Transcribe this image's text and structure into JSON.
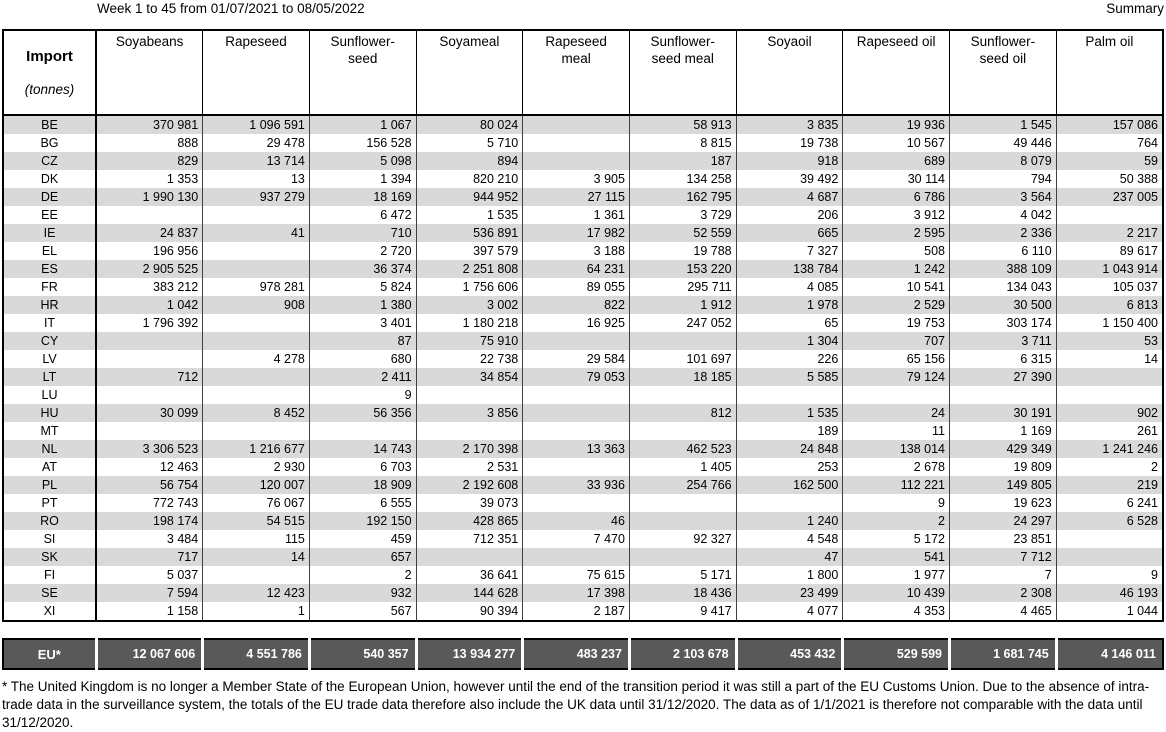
{
  "header": {
    "period": "Week 1 to 45 from 01/07/2021 to 08/05/2022",
    "summary_label": "Summary"
  },
  "table": {
    "corner": {
      "title": "Import",
      "unit": "(tonnes)"
    },
    "columns": [
      "Soyabeans",
      "Rapeseed",
      "Sunflower-\nseed",
      "Soyameal",
      "Rapeseed\nmeal",
      "Sunflower-\nseed meal",
      "Soyaoil",
      "Rapeseed oil",
      "Sunflower-\nseed oil",
      "Palm oil"
    ],
    "rows": [
      {
        "code": "BE",
        "values": [
          "370 981",
          "1 096 591",
          "1 067",
          "80 024",
          "",
          "58 913",
          "3 835",
          "19 936",
          "1 545",
          "157 086"
        ]
      },
      {
        "code": "BG",
        "values": [
          "888",
          "29 478",
          "156 528",
          "5 710",
          "",
          "8 815",
          "19 738",
          "10 567",
          "49 446",
          "764"
        ]
      },
      {
        "code": "CZ",
        "values": [
          "829",
          "13 714",
          "5 098",
          "894",
          "",
          "187",
          "918",
          "689",
          "8 079",
          "59"
        ]
      },
      {
        "code": "DK",
        "values": [
          "1 353",
          "13",
          "1 394",
          "820 210",
          "3 905",
          "134 258",
          "39 492",
          "30 114",
          "794",
          "50 388"
        ]
      },
      {
        "code": "DE",
        "values": [
          "1 990 130",
          "937 279",
          "18 169",
          "944 952",
          "27 115",
          "162 795",
          "4 687",
          "6 786",
          "3 564",
          "237 005"
        ]
      },
      {
        "code": "EE",
        "values": [
          "",
          "",
          "6 472",
          "1 535",
          "1 361",
          "3 729",
          "206",
          "3 912",
          "4 042",
          ""
        ]
      },
      {
        "code": "IE",
        "values": [
          "24 837",
          "41",
          "710",
          "536 891",
          "17 982",
          "52 559",
          "665",
          "2 595",
          "2 336",
          "2 217"
        ]
      },
      {
        "code": "EL",
        "values": [
          "196 956",
          "",
          "2 720",
          "397 579",
          "3 188",
          "19 788",
          "7 327",
          "508",
          "6 110",
          "89 617"
        ]
      },
      {
        "code": "ES",
        "values": [
          "2 905 525",
          "",
          "36 374",
          "2 251 808",
          "64 231",
          "153 220",
          "138 784",
          "1 242",
          "388 109",
          "1 043 914"
        ]
      },
      {
        "code": "FR",
        "values": [
          "383 212",
          "978 281",
          "5 824",
          "1 756 606",
          "89 055",
          "295 711",
          "4 085",
          "10 541",
          "134 043",
          "105 037"
        ]
      },
      {
        "code": "HR",
        "values": [
          "1 042",
          "908",
          "1 380",
          "3 002",
          "822",
          "1 912",
          "1 978",
          "2 529",
          "30 500",
          "6 813"
        ]
      },
      {
        "code": "IT",
        "values": [
          "1 796 392",
          "",
          "3 401",
          "1 180 218",
          "16 925",
          "247 052",
          "65",
          "19 753",
          "303 174",
          "1 150 400"
        ]
      },
      {
        "code": "CY",
        "values": [
          "",
          "",
          "87",
          "75 910",
          "",
          "",
          "1 304",
          "707",
          "3 711",
          "53"
        ]
      },
      {
        "code": "LV",
        "values": [
          "",
          "4 278",
          "680",
          "22 738",
          "29 584",
          "101 697",
          "226",
          "65 156",
          "6 315",
          "14"
        ]
      },
      {
        "code": "LT",
        "values": [
          "712",
          "",
          "2 411",
          "34 854",
          "79 053",
          "18 185",
          "5 585",
          "79 124",
          "27 390",
          ""
        ]
      },
      {
        "code": "LU",
        "values": [
          "",
          "",
          "9",
          "",
          "",
          "",
          "",
          "",
          "",
          ""
        ]
      },
      {
        "code": "HU",
        "values": [
          "30 099",
          "8 452",
          "56 356",
          "3 856",
          "",
          "812",
          "1 535",
          "24",
          "30 191",
          "902"
        ]
      },
      {
        "code": "MT",
        "values": [
          "",
          "",
          "",
          "",
          "",
          "",
          "189",
          "11",
          "1 169",
          "261"
        ]
      },
      {
        "code": "NL",
        "values": [
          "3 306 523",
          "1 216 677",
          "14 743",
          "2 170 398",
          "13 363",
          "462 523",
          "24 848",
          "138 014",
          "429 349",
          "1 241 246"
        ]
      },
      {
        "code": "AT",
        "values": [
          "12 463",
          "2 930",
          "6 703",
          "2 531",
          "",
          "1 405",
          "253",
          "2 678",
          "19 809",
          "2"
        ]
      },
      {
        "code": "PL",
        "values": [
          "56 754",
          "120 007",
          "18 909",
          "2 192 608",
          "33 936",
          "254 766",
          "162 500",
          "112 221",
          "149 805",
          "219"
        ]
      },
      {
        "code": "PT",
        "values": [
          "772 743",
          "76 067",
          "6 555",
          "39 073",
          "",
          "",
          "",
          "9",
          "19 623",
          "6 241"
        ]
      },
      {
        "code": "RO",
        "values": [
          "198 174",
          "54 515",
          "192 150",
          "428 865",
          "46",
          "",
          "1 240",
          "2",
          "24 297",
          "6 528"
        ]
      },
      {
        "code": "SI",
        "values": [
          "3 484",
          "115",
          "459",
          "712 351",
          "7 470",
          "92 327",
          "4 548",
          "5 172",
          "23 851",
          ""
        ]
      },
      {
        "code": "SK",
        "values": [
          "717",
          "14",
          "657",
          "",
          "",
          "",
          "47",
          "541",
          "7 712",
          ""
        ]
      },
      {
        "code": "FI",
        "values": [
          "5 037",
          "",
          "2",
          "36 641",
          "75 615",
          "5 171",
          "1 800",
          "1 977",
          "7",
          "9"
        ]
      },
      {
        "code": "SE",
        "values": [
          "7 594",
          "12 423",
          "932",
          "144 628",
          "17 398",
          "18 436",
          "23 499",
          "10 439",
          "2 308",
          "46 193"
        ]
      },
      {
        "code": "XI",
        "values": [
          "1 158",
          "1",
          "567",
          "90 394",
          "2 187",
          "9 417",
          "4 077",
          "4 353",
          "4 465",
          "1 044"
        ]
      }
    ],
    "total": {
      "code": "EU*",
      "values": [
        "12 067 606",
        "4 551 786",
        "540 357",
        "13 934 277",
        "483 237",
        "2 103 678",
        "453 432",
        "529 599",
        "1 681 745",
        "4 146 011"
      ]
    }
  },
  "footnote": "* The United Kingdom is no longer a Member State of the European Union, however until the end of the transition period it was still a part of the EU Customs Union. Due to the absence of intra-trade data in the surveillance system, the totals of the EU trade data therefore also include the UK data until 31/12/2020. The data as of 1/1/2021 is therefore not comparable with the data until 31/12/2020.",
  "colors": {
    "row_alt": "#d9d9d9",
    "total_bg": "#595959",
    "border": "#000000"
  }
}
